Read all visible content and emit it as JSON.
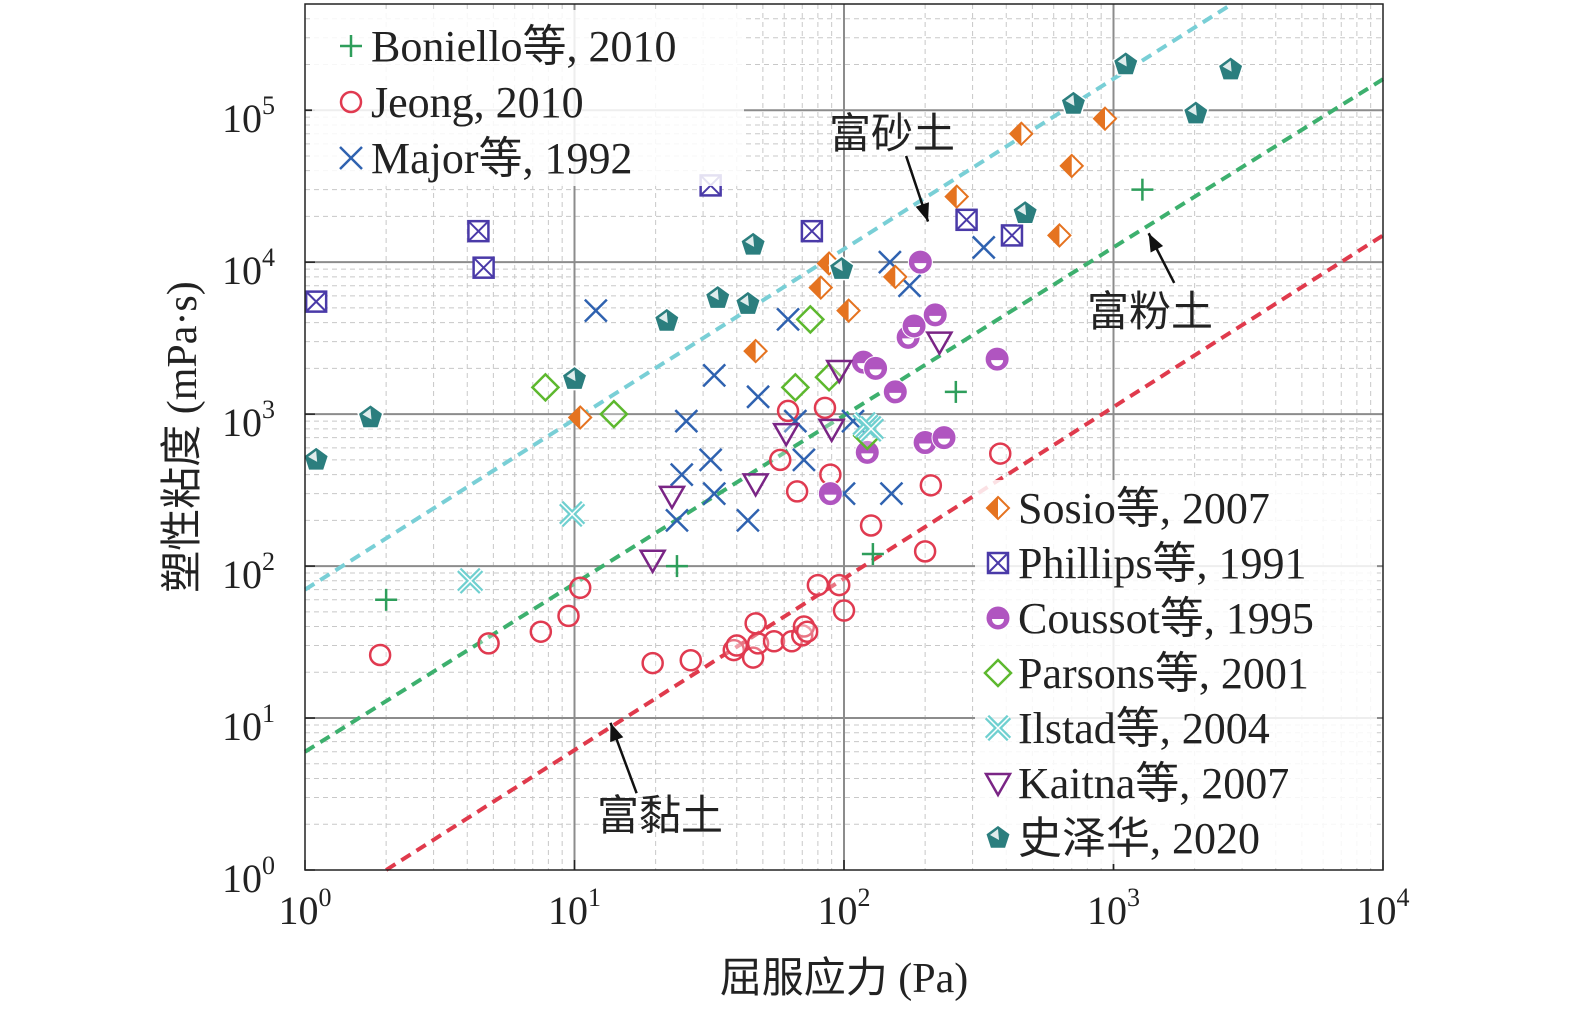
{
  "chart_data": {
    "type": "scatter",
    "xlabel": "屈服应力 (Pa)",
    "ylabel": "塑性粘度 (mPa·s)",
    "xscale": "log",
    "yscale": "log",
    "xlim": [
      1,
      10000
    ],
    "ylim": [
      1,
      500000
    ],
    "grid": true,
    "x_ticks": [
      {
        "value": 1,
        "base": "10",
        "exp": "0"
      },
      {
        "value": 10,
        "base": "10",
        "exp": "1"
      },
      {
        "value": 100,
        "base": "10",
        "exp": "2"
      },
      {
        "value": 1000,
        "base": "10",
        "exp": "3"
      },
      {
        "value": 10000,
        "base": "10",
        "exp": "4"
      }
    ],
    "y_ticks": [
      {
        "value": 1,
        "base": "10",
        "exp": "0"
      },
      {
        "value": 10,
        "base": "10",
        "exp": "1"
      },
      {
        "value": 100,
        "base": "10",
        "exp": "2"
      },
      {
        "value": 1000,
        "base": "10",
        "exp": "3"
      },
      {
        "value": 10000,
        "base": "10",
        "exp": "4"
      },
      {
        "value": 100000,
        "base": "10",
        "exp": "5"
      }
    ],
    "series": [
      {
        "name": "Boniello等, 2010",
        "marker": "plus",
        "color": "#2e9e5b",
        "points": [
          [
            2.0,
            60
          ],
          [
            24,
            100
          ],
          [
            128,
            120
          ],
          [
            260,
            1400
          ],
          [
            1280,
            30000
          ]
        ]
      },
      {
        "name": "Jeong, 2010",
        "marker": "circle",
        "color": "#e03a50",
        "points": [
          [
            1.9,
            26
          ],
          [
            4.8,
            31
          ],
          [
            7.5,
            37
          ],
          [
            9.5,
            47
          ],
          [
            10.5,
            72
          ],
          [
            19.5,
            23
          ],
          [
            27,
            24
          ],
          [
            39,
            28
          ],
          [
            40,
            30
          ],
          [
            46,
            25
          ],
          [
            47,
            42
          ],
          [
            48,
            31
          ],
          [
            55,
            32
          ],
          [
            58,
            500
          ],
          [
            62,
            1050
          ],
          [
            64,
            32
          ],
          [
            67,
            310
          ],
          [
            70,
            35
          ],
          [
            71,
            40
          ],
          [
            73,
            37
          ],
          [
            80,
            75
          ],
          [
            85,
            1100
          ],
          [
            89,
            400
          ],
          [
            96,
            75
          ],
          [
            100,
            51
          ],
          [
            126,
            185
          ],
          [
            200,
            125
          ],
          [
            210,
            340
          ],
          [
            380,
            550
          ]
        ]
      },
      {
        "name": "Major等, 1992",
        "marker": "x",
        "color": "#2f62b0",
        "points": [
          [
            12,
            4800
          ],
          [
            24,
            200
          ],
          [
            25,
            400
          ],
          [
            26,
            900
          ],
          [
            32,
            500
          ],
          [
            33,
            300
          ],
          [
            33,
            1800
          ],
          [
            44,
            200
          ],
          [
            48,
            1300
          ],
          [
            62,
            4200
          ],
          [
            66,
            900
          ],
          [
            71,
            500
          ],
          [
            100,
            300
          ],
          [
            108,
            900
          ],
          [
            148,
            10000
          ],
          [
            150,
            300
          ],
          [
            175,
            7000
          ],
          [
            330,
            12500
          ]
        ]
      },
      {
        "name": "Sosio等, 2007",
        "marker": "diamond-half",
        "color": "#e57320",
        "points": [
          [
            10.5,
            950
          ],
          [
            47,
            2600
          ],
          [
            82,
            6800
          ],
          [
            88,
            9800
          ],
          [
            104,
            4800
          ],
          [
            155,
            8000
          ],
          [
            262,
            27000
          ],
          [
            455,
            70000
          ],
          [
            630,
            15000
          ],
          [
            700,
            43000
          ],
          [
            930,
            88000
          ]
        ]
      },
      {
        "name": "Phillips等, 1991",
        "marker": "square-x",
        "color": "#4a3aa8",
        "points": [
          [
            1.1,
            5500
          ],
          [
            4.4,
            16000
          ],
          [
            4.6,
            9200
          ],
          [
            32,
            32000
          ],
          [
            76,
            16000
          ],
          [
            285,
            19000
          ],
          [
            420,
            15000
          ]
        ]
      },
      {
        "name": "Coussot等, 1995",
        "marker": "circle-filled",
        "color": "#b055c0",
        "points": [
          [
            89,
            300
          ],
          [
            118,
            2200
          ],
          [
            122,
            560
          ],
          [
            131,
            2000
          ],
          [
            155,
            1400
          ],
          [
            173,
            3200
          ],
          [
            182,
            3800
          ],
          [
            192,
            10000
          ],
          [
            200,
            650
          ],
          [
            218,
            4500
          ],
          [
            235,
            700
          ],
          [
            370,
            2300
          ]
        ]
      },
      {
        "name": "Parsons等, 2001",
        "marker": "diamond",
        "color": "#5db82e",
        "points": [
          [
            7.8,
            1500
          ],
          [
            14,
            1000
          ],
          [
            66,
            1500
          ],
          [
            75,
            4200
          ],
          [
            88,
            1750
          ],
          [
            122,
            720
          ]
        ]
      },
      {
        "name": "Ilstad等, 2004",
        "marker": "x-box",
        "color": "#6fd0d0",
        "points": [
          [
            4.1,
            80
          ],
          [
            9.8,
            220
          ],
          [
            120,
            850
          ],
          [
            126,
            800
          ]
        ]
      },
      {
        "name": "Kaitna等, 2007",
        "marker": "triangle-down",
        "color": "#7a2585",
        "points": [
          [
            19.5,
            110
          ],
          [
            23,
            290
          ],
          [
            47,
            350
          ],
          [
            61,
            750
          ],
          [
            90,
            800
          ],
          [
            96,
            1950
          ],
          [
            226,
            3000
          ]
        ]
      },
      {
        "name": "史泽华, 2020",
        "marker": "pentagon",
        "color": "#2b7e7e",
        "points": [
          [
            1.1,
            500
          ],
          [
            1.75,
            950
          ],
          [
            10,
            1700
          ],
          [
            22,
            4100
          ],
          [
            34,
            5800
          ],
          [
            44,
            5300
          ],
          [
            46,
            13000
          ],
          [
            98,
            9000
          ],
          [
            470,
            21000
          ],
          [
            710,
            110000
          ],
          [
            1110,
            200000
          ],
          [
            2020,
            95000
          ],
          [
            2720,
            185000
          ]
        ]
      }
    ],
    "trend_lines": [
      {
        "label": "富砂土",
        "color": "#79cfd6",
        "from": [
          1,
          70
        ],
        "to": [
          2750,
          500000
        ],
        "arrow_from": [
          170,
          50000
        ],
        "arrow_to": [
          205,
          18500
        ]
      },
      {
        "label": "富粉土",
        "color": "#3db06e",
        "from": [
          1,
          6
        ],
        "to": [
          10000,
          160000
        ],
        "arrow_from": [
          1680,
          7300
        ],
        "arrow_to": [
          1350,
          15500
        ]
      },
      {
        "label": "富黏土",
        "color": "#e03a4c",
        "from": [
          2,
          1
        ],
        "to": [
          10000,
          15000
        ],
        "arrow_from": [
          17,
          3.2
        ],
        "arrow_to": [
          13.6,
          9.3
        ]
      }
    ]
  }
}
